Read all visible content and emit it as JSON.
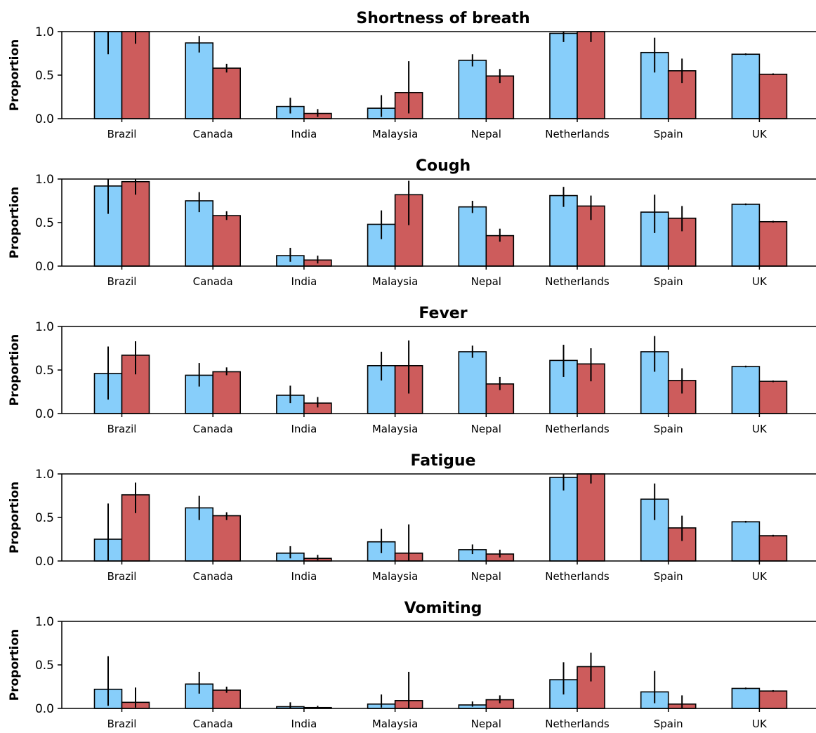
{
  "chart_data": {
    "type": "bar",
    "colors": {
      "series_a": "#87CEFA",
      "series_b": "#CD5C5C",
      "edge": "#000000"
    },
    "ylim": [
      0,
      1
    ],
    "yticks": [
      "0.0",
      "0.5",
      "1.0"
    ],
    "categories": [
      "Brazil",
      "Canada",
      "India",
      "Malaysia",
      "Nepal",
      "Netherlands",
      "Spain",
      "UK"
    ],
    "panels": [
      {
        "title": "Shortness of breath",
        "ylabel": "Proportion",
        "series": [
          {
            "values": [
              1.0,
              0.87,
              0.14,
              0.12,
              0.67,
              0.98,
              0.76,
              0.74
            ],
            "err_low": [
              0.74,
              0.76,
              0.06,
              0.02,
              0.6,
              0.88,
              0.53,
              0.73
            ],
            "err_high": [
              1.0,
              0.95,
              0.24,
              0.27,
              0.74,
              1.0,
              0.93,
              0.75
            ]
          },
          {
            "values": [
              1.0,
              0.58,
              0.06,
              0.3,
              0.49,
              1.0,
              0.55,
              0.51
            ],
            "err_low": [
              0.86,
              0.53,
              0.02,
              0.06,
              0.41,
              0.88,
              0.41,
              0.5
            ],
            "err_high": [
              1.0,
              0.63,
              0.11,
              0.66,
              0.57,
              1.0,
              0.69,
              0.52
            ]
          }
        ]
      },
      {
        "title": "Cough",
        "ylabel": "Proportion",
        "series": [
          {
            "values": [
              0.92,
              0.75,
              0.12,
              0.48,
              0.68,
              0.81,
              0.62,
              0.71
            ],
            "err_low": [
              0.6,
              0.62,
              0.05,
              0.31,
              0.61,
              0.68,
              0.38,
              0.7
            ],
            "err_high": [
              1.0,
              0.85,
              0.21,
              0.64,
              0.75,
              0.91,
              0.82,
              0.72
            ]
          },
          {
            "values": [
              0.97,
              0.58,
              0.07,
              0.82,
              0.35,
              0.69,
              0.55,
              0.51
            ],
            "err_low": [
              0.82,
              0.53,
              0.03,
              0.47,
              0.28,
              0.53,
              0.4,
              0.5
            ],
            "err_high": [
              1.0,
              0.63,
              0.12,
              0.98,
              0.43,
              0.81,
              0.69,
              0.52
            ]
          }
        ]
      },
      {
        "title": "Fever",
        "ylabel": "Proportion",
        "series": [
          {
            "values": [
              0.46,
              0.44,
              0.21,
              0.55,
              0.71,
              0.61,
              0.71,
              0.54
            ],
            "err_low": [
              0.16,
              0.31,
              0.12,
              0.38,
              0.64,
              0.42,
              0.48,
              0.53
            ],
            "err_high": [
              0.77,
              0.58,
              0.32,
              0.71,
              0.78,
              0.79,
              0.89,
              0.55
            ]
          },
          {
            "values": [
              0.67,
              0.48,
              0.12,
              0.55,
              0.34,
              0.57,
              0.38,
              0.37
            ],
            "err_low": [
              0.45,
              0.44,
              0.07,
              0.23,
              0.27,
              0.37,
              0.23,
              0.36
            ],
            "err_high": [
              0.83,
              0.53,
              0.19,
              0.84,
              0.42,
              0.75,
              0.52,
              0.38
            ]
          }
        ]
      },
      {
        "title": "Fatigue",
        "ylabel": "Proportion",
        "series": [
          {
            "values": [
              0.25,
              0.61,
              0.09,
              0.22,
              0.13,
              0.96,
              0.71,
              0.45
            ],
            "err_low": [
              0.0,
              0.47,
              0.03,
              0.09,
              0.08,
              0.81,
              0.47,
              0.44
            ],
            "err_high": [
              0.66,
              0.75,
              0.17,
              0.37,
              0.19,
              1.0,
              0.89,
              0.46
            ]
          },
          {
            "values": [
              0.76,
              0.52,
              0.03,
              0.09,
              0.08,
              1.0,
              0.38,
              0.29
            ],
            "err_low": [
              0.55,
              0.47,
              0.01,
              0.0,
              0.04,
              0.89,
              0.23,
              0.28
            ],
            "err_high": [
              0.9,
              0.56,
              0.07,
              0.42,
              0.13,
              1.0,
              0.52,
              0.3
            ]
          }
        ]
      },
      {
        "title": "Vomiting",
        "ylabel": "Proportion",
        "series": [
          {
            "values": [
              0.22,
              0.28,
              0.02,
              0.05,
              0.04,
              0.33,
              0.19,
              0.23
            ],
            "err_low": [
              0.03,
              0.17,
              0.0,
              0.01,
              0.02,
              0.16,
              0.06,
              0.22
            ],
            "err_high": [
              0.6,
              0.42,
              0.07,
              0.16,
              0.08,
              0.53,
              0.43,
              0.24
            ]
          },
          {
            "values": [
              0.07,
              0.21,
              0.01,
              0.09,
              0.1,
              0.48,
              0.05,
              0.2
            ],
            "err_low": [
              0.01,
              0.18,
              0.0,
              0.0,
              0.06,
              0.31,
              0.0,
              0.19
            ],
            "err_high": [
              0.24,
              0.25,
              0.03,
              0.42,
              0.15,
              0.64,
              0.15,
              0.21
            ]
          }
        ]
      }
    ]
  }
}
